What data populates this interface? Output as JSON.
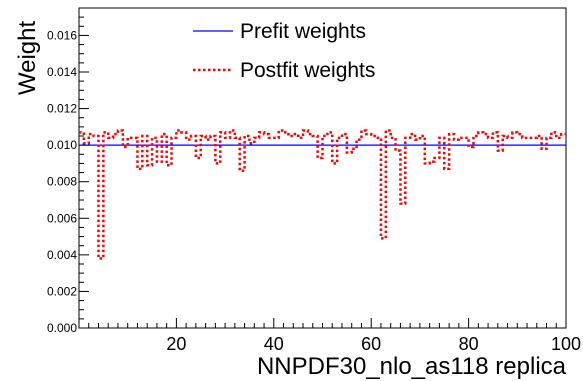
{
  "chart_data": {
    "type": "line",
    "xlabel": "NNPDF30_nlo_as118 replica",
    "ylabel": "Weight",
    "xlim": [
      0,
      100
    ],
    "ylim": [
      0,
      0.0175
    ],
    "x_ticks": [
      "20",
      "40",
      "60",
      "80",
      "100"
    ],
    "y_ticks": [
      "0.000",
      "0.002",
      "0.004",
      "0.006",
      "0.008",
      "0.010",
      "0.012",
      "0.014",
      "0.016"
    ],
    "grid": false,
    "legend_position": "top-center",
    "series": [
      {
        "name": "Prefit weights",
        "style": "solid",
        "color": "#0000ff",
        "x": [
          0,
          100
        ],
        "y": [
          0.01,
          0.01
        ]
      },
      {
        "name": "Postfit weights",
        "style": "dotted",
        "color": "#ff0000",
        "x": [
          1,
          2,
          3,
          4,
          5,
          6,
          7,
          8,
          9,
          10,
          11,
          12,
          13,
          14,
          15,
          16,
          17,
          18,
          19,
          20,
          21,
          22,
          23,
          24,
          25,
          26,
          27,
          28,
          29,
          30,
          31,
          32,
          33,
          34,
          35,
          36,
          37,
          38,
          39,
          40,
          41,
          42,
          43,
          44,
          45,
          46,
          47,
          48,
          49,
          50,
          51,
          52,
          53,
          54,
          55,
          56,
          57,
          58,
          59,
          60,
          61,
          62,
          63,
          64,
          65,
          66,
          67,
          68,
          69,
          70,
          71,
          72,
          73,
          74,
          75,
          76,
          77,
          78,
          79,
          80,
          81,
          82,
          83,
          84,
          85,
          86,
          87,
          88,
          89,
          90,
          91,
          92,
          93,
          94,
          95,
          96,
          97,
          98,
          99,
          100
        ],
        "y": [
          0.0107,
          0.0101,
          0.0106,
          0.0105,
          0.0038,
          0.0107,
          0.0104,
          0.0106,
          0.0108,
          0.0099,
          0.0104,
          0.0104,
          0.0087,
          0.0105,
          0.0089,
          0.0104,
          0.0091,
          0.0106,
          0.0089,
          0.0104,
          0.0108,
          0.0107,
          0.0103,
          0.0105,
          0.0093,
          0.0105,
          0.0103,
          0.0105,
          0.009,
          0.0107,
          0.0104,
          0.0108,
          0.0104,
          0.0086,
          0.0105,
          0.0101,
          0.0104,
          0.0107,
          0.0106,
          0.0104,
          0.0104,
          0.0108,
          0.0107,
          0.0105,
          0.0106,
          0.0104,
          0.0108,
          0.0106,
          0.0105,
          0.0093,
          0.0105,
          0.0107,
          0.009,
          0.0104,
          0.0106,
          0.0096,
          0.0098,
          0.0103,
          0.0108,
          0.0106,
          0.0105,
          0.0104,
          0.0049,
          0.0108,
          0.0104,
          0.0097,
          0.0068,
          0.0104,
          0.0106,
          0.0103,
          0.0105,
          0.009,
          0.0091,
          0.0093,
          0.0104,
          0.0087,
          0.0106,
          0.0103,
          0.0104,
          0.0104,
          0.0099,
          0.0105,
          0.0107,
          0.0106,
          0.0104,
          0.0107,
          0.0097,
          0.0105,
          0.0104,
          0.0107,
          0.0106,
          0.0104,
          0.0104,
          0.0104,
          0.0105,
          0.0098,
          0.0104,
          0.0107,
          0.0104,
          0.0106
        ]
      }
    ]
  }
}
